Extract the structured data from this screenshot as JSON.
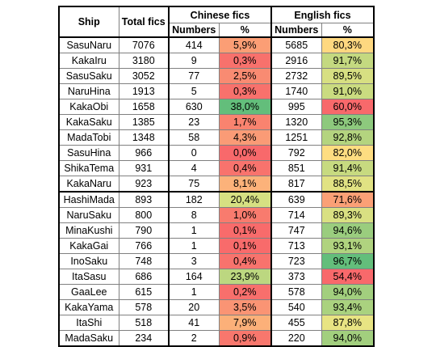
{
  "headers": {
    "ship": "Ship",
    "total": "Total fics",
    "chinese": "Chinese fics",
    "english": "English fics",
    "numbers": "Numbers",
    "percent": "%"
  },
  "rows": [
    {
      "ship": "SasuNaru",
      "total": "7076",
      "cn": "414",
      "cn_pct": "5,9%",
      "cn_color": "#fb9e75",
      "en": "5685",
      "en_pct": "80,3%",
      "en_color": "#fed880"
    },
    {
      "ship": "KakaIru",
      "total": "3180",
      "cn": "9",
      "cn_pct": "0,3%",
      "cn_color": "#f8716c",
      "en": "2916",
      "en_pct": "91,7%",
      "en_color": "#c4d980"
    },
    {
      "ship": "SasuSaku",
      "total": "3052",
      "cn": "77",
      "cn_pct": "2,5%",
      "cn_color": "#f98b72",
      "en": "2732",
      "en_pct": "89,5%",
      "en_color": "#d7df82"
    },
    {
      "ship": "NaruHina",
      "total": "1913",
      "cn": "5",
      "cn_pct": "0,3%",
      "cn_color": "#f8716c",
      "en": "1740",
      "en_pct": "91,0%",
      "en_color": "#cadb80"
    },
    {
      "ship": "KakaObi",
      "total": "1658",
      "cn": "630",
      "cn_pct": "38,0%",
      "cn_color": "#63be7b",
      "en": "995",
      "en_pct": "60,0%",
      "en_color": "#f8696b"
    },
    {
      "ship": "KakaSaku",
      "total": "1385",
      "cn": "23",
      "cn_pct": "1,7%",
      "cn_color": "#f9836f",
      "en": "1320",
      "en_pct": "95,3%",
      "en_color": "#8dc97d"
    },
    {
      "ship": "MadaTobi",
      "total": "1348",
      "cn": "58",
      "cn_pct": "4,3%",
      "cn_color": "#fa9b76",
      "en": "1251",
      "en_pct": "92,8%",
      "en_color": "#b4d47f"
    },
    {
      "ship": "SasuHina",
      "total": "966",
      "cn": "0",
      "cn_pct": "0,0%",
      "cn_color": "#f8696b",
      "en": "792",
      "en_pct": "82,0%",
      "en_color": "#fedd81"
    },
    {
      "ship": "ShikaTema",
      "total": "931",
      "cn": "4",
      "cn_pct": "0,4%",
      "cn_color": "#f8736d",
      "en": "851",
      "en_pct": "91,4%",
      "en_color": "#c7da80"
    },
    {
      "ship": "KakaNaru",
      "total": "923",
      "cn": "75",
      "cn_pct": "8,1%",
      "cn_color": "#fcb27a",
      "en": "817",
      "en_pct": "88,5%",
      "en_color": "#e1e283"
    },
    {
      "ship": "HashiMada",
      "total": "893",
      "cn": "182",
      "cn_pct": "20,4%",
      "cn_color": "#d6e082",
      "en": "639",
      "en_pct": "71,6%",
      "en_color": "#fba076"
    },
    {
      "ship": "NaruSaku",
      "total": "800",
      "cn": "8",
      "cn_pct": "1,0%",
      "cn_color": "#f87b6e",
      "en": "714",
      "en_pct": "89,3%",
      "en_color": "#d9e082"
    },
    {
      "ship": "MinaKushi",
      "total": "790",
      "cn": "1",
      "cn_pct": "0,1%",
      "cn_color": "#f86b6b",
      "en": "747",
      "en_pct": "94,6%",
      "en_color": "#9acd7e"
    },
    {
      "ship": "KakaGai",
      "total": "766",
      "cn": "1",
      "cn_pct": "0,1%",
      "cn_color": "#f86b6b",
      "en": "713",
      "en_pct": "93,1%",
      "en_color": "#b0d37f"
    },
    {
      "ship": "InoSaku",
      "total": "748",
      "cn": "3",
      "cn_pct": "0,4%",
      "cn_color": "#f8736d",
      "en": "723",
      "en_pct": "96,7%",
      "en_color": "#63be7b"
    },
    {
      "ship": "ItaSasu",
      "total": "686",
      "cn": "164",
      "cn_pct": "23,9%",
      "cn_color": "#bcd780",
      "en": "373",
      "en_pct": "54,4%",
      "en_color": "#f8696b"
    },
    {
      "ship": "GaaLee",
      "total": "615",
      "cn": "1",
      "cn_pct": "0,2%",
      "cn_color": "#f86f6c",
      "en": "578",
      "en_pct": "94,0%",
      "en_color": "#a2cf7e"
    },
    {
      "ship": "KakaYama",
      "total": "578",
      "cn": "20",
      "cn_pct": "3,5%",
      "cn_color": "#fa9474",
      "en": "540",
      "en_pct": "93,4%",
      "en_color": "#aad27f"
    },
    {
      "ship": "ItaShi",
      "total": "518",
      "cn": "41",
      "cn_pct": "7,9%",
      "cn_color": "#fcb079",
      "en": "455",
      "en_pct": "87,8%",
      "en_color": "#e8e483"
    },
    {
      "ship": "MadaSaku",
      "total": "234",
      "cn": "2",
      "cn_pct": "0,9%",
      "cn_color": "#f8776d",
      "en": "220",
      "en_pct": "94,0%",
      "en_color": "#a2cf7e"
    }
  ]
}
